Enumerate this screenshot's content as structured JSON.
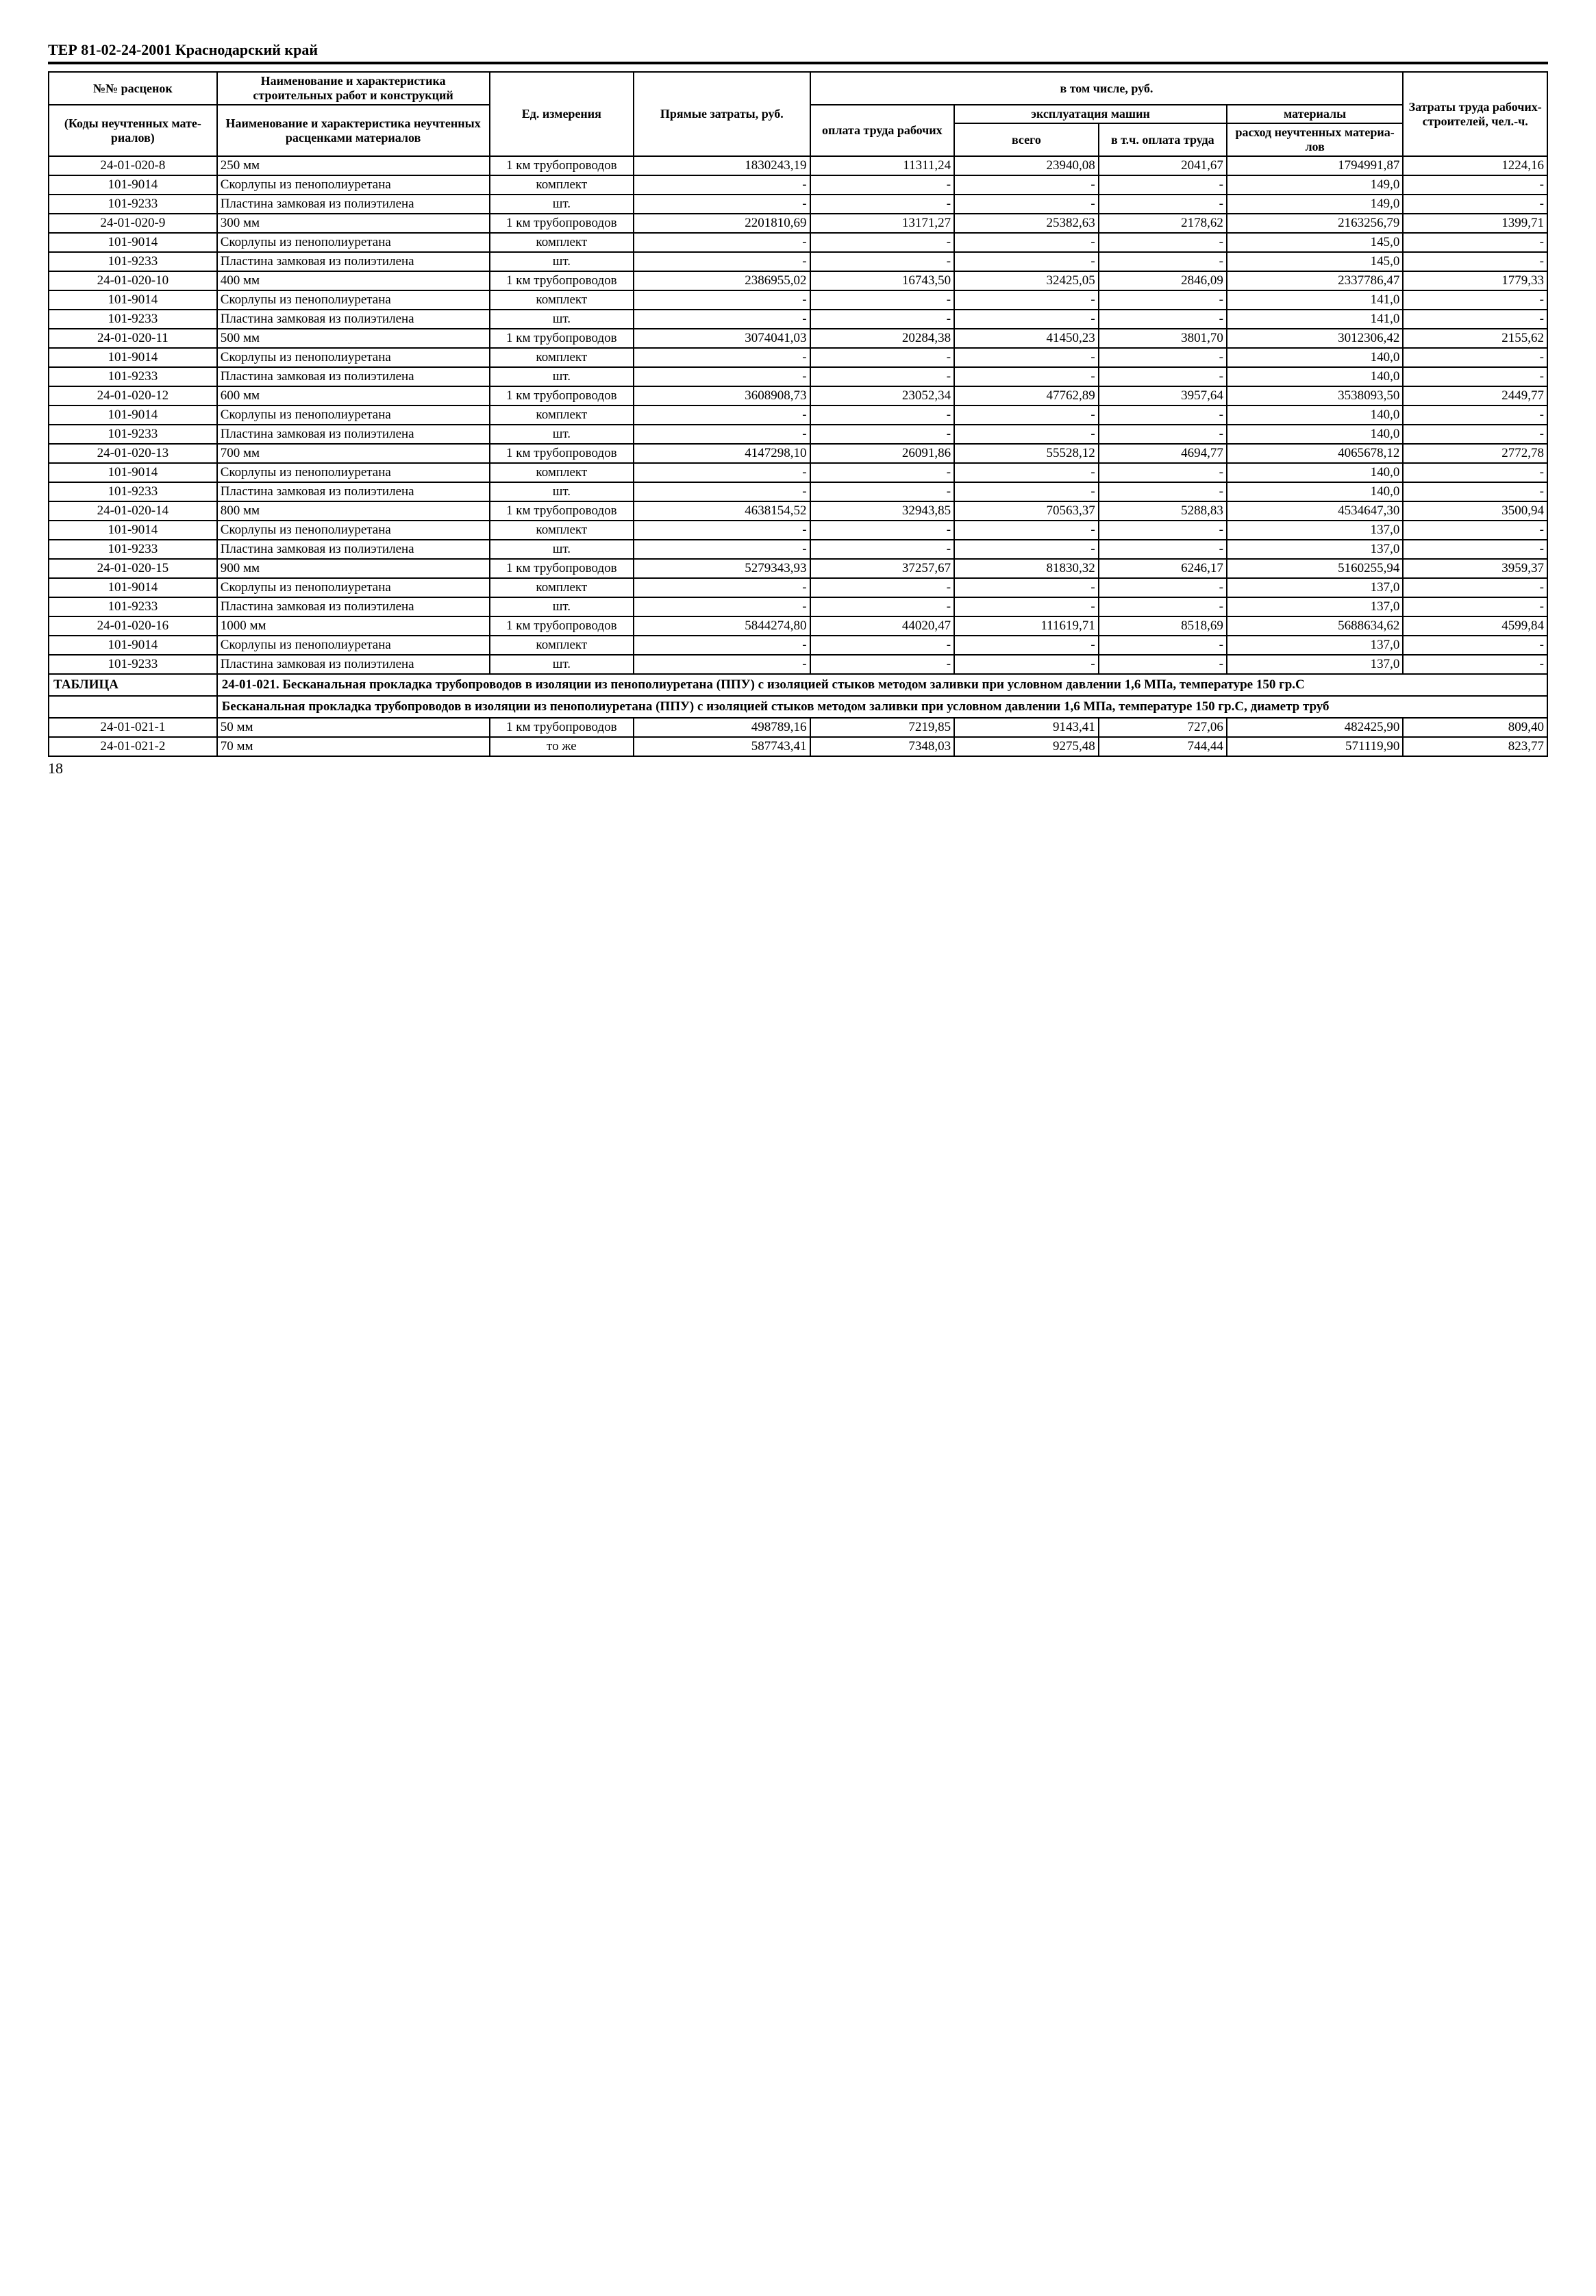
{
  "doc_header": "ТЕР 81-02-24-2001 Краснодарский край",
  "page_number": "18",
  "header": {
    "col1_top": "№№ расценок",
    "col1_bot": "(Коды неуч­тенных мате­риалов)",
    "col2_top": "Наименование и характе­ристика строительных работ и конструкций",
    "col2_bot": "Наименование и характе­ристика неучтенных рас­ценками материалов",
    "col3": "Ед. измере­ния",
    "col4": "Прямые за­траты, руб.",
    "group_top": "в том числе, руб.",
    "col5": "оплата труда ра­бочих",
    "group_mach": "эксплуатация машин",
    "col6": "всего",
    "col7": "в т.ч. оп­лата труда",
    "group_mat": "материалы",
    "col8": "расход не­учтенных материа­лов",
    "col9": "Затраты труда ра­бочих-строите­лей, чел.-ч."
  },
  "rows": [
    {
      "t": "data",
      "code": "24-01-020-8",
      "name": "250 мм",
      "unit": "1 км тру­бопроводов",
      "c1": "1830243,19",
      "c2": "11311,24",
      "c3": "23940,08",
      "c4": "2041,67",
      "c5": "1794991,87",
      "c6": "1224,16"
    },
    {
      "t": "data",
      "code": "101-9014",
      "name": "Скорлупы из пенопо­лиуретана",
      "unit": "комплект",
      "c1": "-",
      "c2": "-",
      "c3": "-",
      "c4": "-",
      "c5": "149,0",
      "c6": "-"
    },
    {
      "t": "data",
      "code": "101-9233",
      "name": "Пластина замковая из полиэтилена",
      "unit": "шт.",
      "c1": "-",
      "c2": "-",
      "c3": "-",
      "c4": "-",
      "c5": "149,0",
      "c6": "-"
    },
    {
      "t": "data",
      "code": "24-01-020-9",
      "name": "300 мм",
      "unit": "1 км тру­бопроводов",
      "c1": "2201810,69",
      "c2": "13171,27",
      "c3": "25382,63",
      "c4": "2178,62",
      "c5": "2163256,79",
      "c6": "1399,71"
    },
    {
      "t": "data",
      "code": "101-9014",
      "name": "Скорлупы из пенопо­лиуретана",
      "unit": "комплект",
      "c1": "-",
      "c2": "-",
      "c3": "-",
      "c4": "-",
      "c5": "145,0",
      "c6": "-"
    },
    {
      "t": "data",
      "code": "101-9233",
      "name": "Пластина замковая из полиэтилена",
      "unit": "шт.",
      "c1": "-",
      "c2": "-",
      "c3": "-",
      "c4": "-",
      "c5": "145,0",
      "c6": "-"
    },
    {
      "t": "data",
      "code": "24-01-020-10",
      "name": "400 мм",
      "unit": "1 км тру­бопроводов",
      "c1": "2386955,02",
      "c2": "16743,50",
      "c3": "32425,05",
      "c4": "2846,09",
      "c5": "2337786,47",
      "c6": "1779,33"
    },
    {
      "t": "data",
      "code": "101-9014",
      "name": "Скорлупы из пенопо­лиуретана",
      "unit": "комплект",
      "c1": "-",
      "c2": "-",
      "c3": "-",
      "c4": "-",
      "c5": "141,0",
      "c6": "-"
    },
    {
      "t": "data",
      "code": "101-9233",
      "name": "Пластина замковая из полиэтилена",
      "unit": "шт.",
      "c1": "-",
      "c2": "-",
      "c3": "-",
      "c4": "-",
      "c5": "141,0",
      "c6": "-"
    },
    {
      "t": "data",
      "code": "24-01-020-11",
      "name": "500 мм",
      "unit": "1 км тру­бопроводов",
      "c1": "3074041,03",
      "c2": "20284,38",
      "c3": "41450,23",
      "c4": "3801,70",
      "c5": "3012306,42",
      "c6": "2155,62"
    },
    {
      "t": "data",
      "code": "101-9014",
      "name": "Скорлупы из пенопо­лиуретана",
      "unit": "комплект",
      "c1": "-",
      "c2": "-",
      "c3": "-",
      "c4": "-",
      "c5": "140,0",
      "c6": "-"
    },
    {
      "t": "data",
      "code": "101-9233",
      "name": "Пластина замковая из полиэтилена",
      "unit": "шт.",
      "c1": "-",
      "c2": "-",
      "c3": "-",
      "c4": "-",
      "c5": "140,0",
      "c6": "-"
    },
    {
      "t": "data",
      "code": "24-01-020-12",
      "name": "600 мм",
      "unit": "1 км тру­бопроводов",
      "c1": "3608908,73",
      "c2": "23052,34",
      "c3": "47762,89",
      "c4": "3957,64",
      "c5": "3538093,50",
      "c6": "2449,77"
    },
    {
      "t": "data",
      "code": "101-9014",
      "name": "Скорлупы из пенопо­лиуретана",
      "unit": "комплект",
      "c1": "-",
      "c2": "-",
      "c3": "-",
      "c4": "-",
      "c5": "140,0",
      "c6": "-"
    },
    {
      "t": "data",
      "code": "101-9233",
      "name": "Пластина замковая из полиэтилена",
      "unit": "шт.",
      "c1": "-",
      "c2": "-",
      "c3": "-",
      "c4": "-",
      "c5": "140,0",
      "c6": "-"
    },
    {
      "t": "data",
      "code": "24-01-020-13",
      "name": "700 мм",
      "unit": "1 км тру­бопроводов",
      "c1": "4147298,10",
      "c2": "26091,86",
      "c3": "55528,12",
      "c4": "4694,77",
      "c5": "4065678,12",
      "c6": "2772,78"
    },
    {
      "t": "data",
      "code": "101-9014",
      "name": "Скорлупы из пенопо­лиуретана",
      "unit": "комплект",
      "c1": "-",
      "c2": "-",
      "c3": "-",
      "c4": "-",
      "c5": "140,0",
      "c6": "-"
    },
    {
      "t": "data",
      "code": "101-9233",
      "name": "Пластина замковая из полиэтилена",
      "unit": "шт.",
      "c1": "-",
      "c2": "-",
      "c3": "-",
      "c4": "-",
      "c5": "140,0",
      "c6": "-"
    },
    {
      "t": "data",
      "code": "24-01-020-14",
      "name": "800 мм",
      "unit": "1 км тру­бопроводов",
      "c1": "4638154,52",
      "c2": "32943,85",
      "c3": "70563,37",
      "c4": "5288,83",
      "c5": "4534647,30",
      "c6": "3500,94"
    },
    {
      "t": "data",
      "code": "101-9014",
      "name": "Скорлупы из пенопо­лиуретана",
      "unit": "комплект",
      "c1": "-",
      "c2": "-",
      "c3": "-",
      "c4": "-",
      "c5": "137,0",
      "c6": "-"
    },
    {
      "t": "data",
      "code": "101-9233",
      "name": "Пластина замковая из полиэтилена",
      "unit": "шт.",
      "c1": "-",
      "c2": "-",
      "c3": "-",
      "c4": "-",
      "c5": "137,0",
      "c6": "-"
    },
    {
      "t": "data",
      "code": "24-01-020-15",
      "name": "900 мм",
      "unit": "1 км тру­бопроводов",
      "c1": "5279343,93",
      "c2": "37257,67",
      "c3": "81830,32",
      "c4": "6246,17",
      "c5": "5160255,94",
      "c6": "3959,37"
    },
    {
      "t": "data",
      "code": "101-9014",
      "name": "Скорлупы из пенопо­лиуретана",
      "unit": "комплект",
      "c1": "-",
      "c2": "-",
      "c3": "-",
      "c4": "-",
      "c5": "137,0",
      "c6": "-"
    },
    {
      "t": "data",
      "code": "101-9233",
      "name": "Пластина замковая из полиэтилена",
      "unit": "шт.",
      "c1": "-",
      "c2": "-",
      "c3": "-",
      "c4": "-",
      "c5": "137,0",
      "c6": "-"
    },
    {
      "t": "data",
      "code": "24-01-020-16",
      "name": "1000 мм",
      "unit": "1 км тру­бопроводов",
      "c1": "5844274,80",
      "c2": "44020,47",
      "c3": "111619,71",
      "c4": "8518,69",
      "c5": "5688634,62",
      "c6": "4599,84"
    },
    {
      "t": "data",
      "code": "101-9014",
      "name": "Скорлупы из пенопо­лиуретана",
      "unit": "комплект",
      "c1": "-",
      "c2": "-",
      "c3": "-",
      "c4": "-",
      "c5": "137,0",
      "c6": "-"
    },
    {
      "t": "data",
      "code": "101-9233",
      "name": "Пластина замковая из полиэтилена",
      "unit": "шт.",
      "c1": "-",
      "c2": "-",
      "c3": "-",
      "c4": "-",
      "c5": "137,0",
      "c6": "-"
    },
    {
      "t": "section",
      "label": "ТАБЛИЦА",
      "text": "24-01-021.  Бесканальная прокладка трубопроводов в изоляции из пенополиуретана (ППУ) с изоля­цией стыков методом заливки при условном давлении 1,6 МПа, температуре 150 гр.С"
    },
    {
      "t": "subhead",
      "text": "Бесканальная прокладка трубопроводов в изоляции из пенополиуретана (ППУ) с изоляцией сты­ков методом заливки при условном давлении 1,6 МПа, температуре 150 гр.С, диаметр труб"
    },
    {
      "t": "data",
      "code": "24-01-021-1",
      "name": "50 мм",
      "unit": "1 км тру­бопроводов",
      "c1": "498789,16",
      "c2": "7219,85",
      "c3": "9143,41",
      "c4": "727,06",
      "c5": "482425,90",
      "c6": "809,40"
    },
    {
      "t": "data",
      "code": "24-01-021-2",
      "name": "70 мм",
      "unit": "то же",
      "c1": "587743,41",
      "c2": "7348,03",
      "c3": "9275,48",
      "c4": "744,44",
      "c5": "571119,90",
      "c6": "823,77"
    }
  ]
}
